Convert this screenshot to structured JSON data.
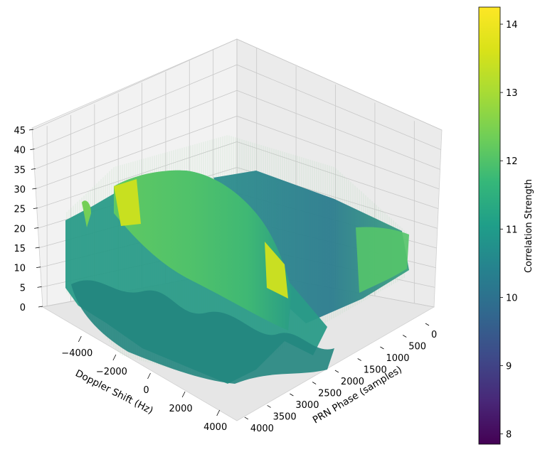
{
  "chart_data": {
    "type": "surface",
    "title": "",
    "xlabel": "PRN Phase (samples)",
    "ylabel": "Doppler Shift (Hz)",
    "zlabel": "",
    "x_ticks": [
      "0",
      "500",
      "1000",
      "1500",
      "2000",
      "2500",
      "3000",
      "3500",
      "4000"
    ],
    "y_ticks": [
      "-4000",
      "-2000",
      "0",
      "2000",
      "4000"
    ],
    "z_ticks": [
      "0",
      "5",
      "10",
      "15",
      "20",
      "25",
      "30",
      "35",
      "40",
      "45"
    ],
    "xlim": [
      0,
      4092
    ],
    "ylim": [
      -5000,
      5000
    ],
    "zlim": [
      0,
      45
    ],
    "colorbar": {
      "label": "Correlation Strength",
      "ticks": [
        "8",
        "9",
        "10",
        "11",
        "12",
        "13",
        "14"
      ],
      "range": [
        7.85,
        14.25
      ],
      "colormap": "viridis"
    },
    "surface_description": "Noisy 3D correlation surface; values mostly 11-13 with spiky fringe, broad ridge peaking near 30 along Doppler axis",
    "peak": {
      "z": 30
    }
  }
}
